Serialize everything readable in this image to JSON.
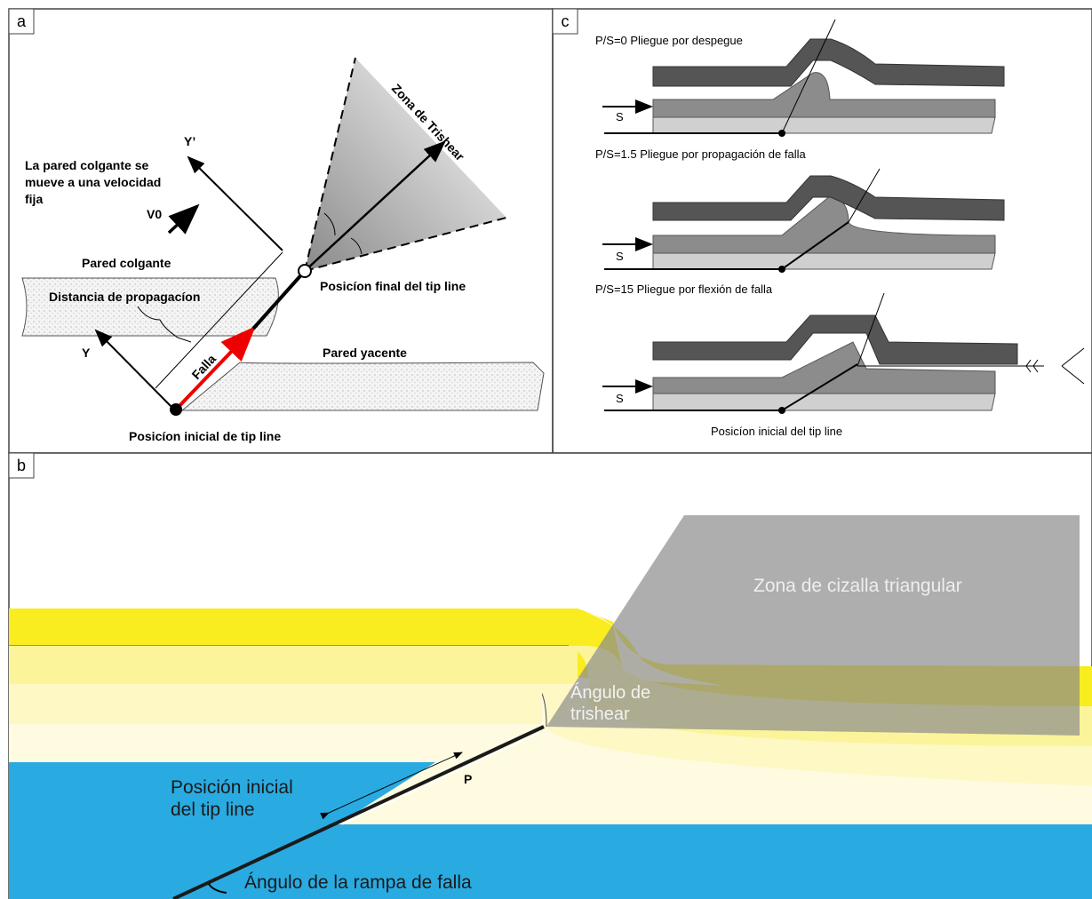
{
  "panel_a": {
    "label": "a",
    "trishear_zone": "Zona de Trishear",
    "y_prime": "Y’",
    "wall_note": [
      "La pared  colgante se",
      "mueve a una velocidad",
      "fija"
    ],
    "velocity": "V0",
    "hanging_wall": "Pared colgante",
    "propagation": "Distancia de propagacíon",
    "final_tip": "Posicíon final del tip line",
    "fault": "Falla",
    "footwall": "Pared yacente",
    "y_axis": "Y",
    "initial_tip": "Posicíon inicial de tip line"
  },
  "panel_c": {
    "label": "c",
    "rows": [
      "P/S=0 Pliegue por despegue",
      "P/S=1.5 Pliegue por propagación de falla",
      "P/S=15 Pliegue por flexión de falla"
    ],
    "slip": "S",
    "initial_tip": "Posicíon inicial del tip line"
  },
  "panel_b": {
    "label": "b",
    "shear_zone": "Zona de cizalla triangular",
    "trishear_angle": [
      "Ángulo de",
      "trishear"
    ],
    "p": "P",
    "initial_tip": [
      "Posición inicial",
      "del tip line"
    ],
    "ramp_angle": "Ángulo de la rampa  de falla"
  }
}
